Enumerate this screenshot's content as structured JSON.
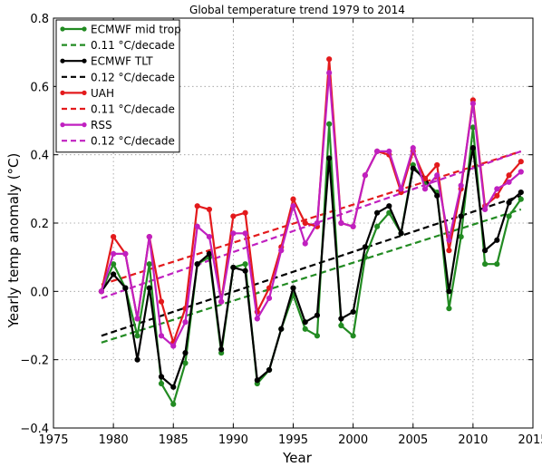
{
  "chart_data": {
    "type": "line",
    "title": "Global temperature trend 1979 to 2014",
    "xlabel": "Year",
    "ylabel": "Yearly temp anomaly (°C)",
    "xlim": [
      1975,
      2015
    ],
    "ylim": [
      -0.4,
      0.8
    ],
    "xticks": [
      1975,
      1980,
      1985,
      1990,
      1995,
      2000,
      2005,
      2010,
      2015
    ],
    "yticks": [
      -0.4,
      -0.2,
      0.0,
      0.2,
      0.4,
      0.6,
      0.8
    ],
    "xtick_labels": [
      "1975",
      "1980",
      "1985",
      "1990",
      "1995",
      "2000",
      "2005",
      "2010",
      "2015"
    ],
    "ytick_labels": [
      "−0.4",
      "−0.2",
      "0.0",
      "0.2",
      "0.4",
      "0.6",
      "0.8"
    ],
    "grid": true,
    "legend_position": "top-left",
    "x": [
      1979,
      1980,
      1981,
      1982,
      1983,
      1984,
      1985,
      1986,
      1987,
      1988,
      1989,
      1990,
      1991,
      1992,
      1993,
      1994,
      1995,
      1996,
      1997,
      1998,
      1999,
      2000,
      2001,
      2002,
      2003,
      2004,
      2005,
      2006,
      2007,
      2008,
      2009,
      2010,
      2011,
      2012,
      2013,
      2014
    ],
    "series": [
      {
        "name": "ECMWF mid trop",
        "color": "#228b22",
        "values": [
          0.0,
          0.08,
          0.01,
          -0.13,
          0.08,
          -0.27,
          -0.33,
          -0.21,
          0.08,
          0.1,
          -0.18,
          0.07,
          0.08,
          -0.27,
          -0.23,
          -0.11,
          -0.01,
          -0.11,
          -0.13,
          0.49,
          -0.1,
          -0.13,
          0.1,
          0.19,
          0.23,
          0.17,
          0.37,
          0.32,
          0.29,
          -0.05,
          0.16,
          0.48,
          0.08,
          0.08,
          0.22,
          0.27
        ]
      },
      {
        "name": "ECMWF TLT",
        "color": "#000000",
        "values": [
          0.0,
          0.05,
          0.01,
          -0.2,
          0.01,
          -0.25,
          -0.28,
          -0.18,
          0.08,
          0.11,
          -0.17,
          0.07,
          0.06,
          -0.26,
          -0.23,
          -0.11,
          0.01,
          -0.09,
          -0.07,
          0.39,
          -0.08,
          -0.06,
          0.13,
          0.23,
          0.25,
          0.17,
          0.36,
          0.33,
          0.28,
          0.0,
          0.22,
          0.42,
          0.12,
          0.15,
          0.26,
          0.29
        ]
      },
      {
        "name": "UAH",
        "color": "#e31a1c",
        "values": [
          0.0,
          0.16,
          0.11,
          -0.08,
          0.16,
          -0.03,
          -0.15,
          -0.05,
          0.25,
          0.24,
          -0.03,
          0.22,
          0.23,
          -0.06,
          0.01,
          0.13,
          0.27,
          0.2,
          0.19,
          0.68,
          0.2,
          0.19,
          0.34,
          0.41,
          0.4,
          0.29,
          0.41,
          0.33,
          0.37,
          0.12,
          0.3,
          0.56,
          0.25,
          0.28,
          0.34,
          0.38
        ]
      },
      {
        "name": "RSS",
        "color": "#c020c0",
        "values": [
          0.0,
          0.11,
          0.11,
          -0.08,
          0.16,
          -0.13,
          -0.16,
          -0.09,
          0.19,
          0.16,
          -0.03,
          0.17,
          0.17,
          -0.08,
          -0.02,
          0.12,
          0.25,
          0.14,
          0.2,
          0.64,
          0.2,
          0.19,
          0.34,
          0.41,
          0.41,
          0.3,
          0.42,
          0.3,
          0.34,
          0.15,
          0.31,
          0.55,
          0.24,
          0.3,
          0.32,
          0.35
        ]
      }
    ],
    "trends": [
      {
        "name": "0.11 °C/decade",
        "color": "#228b22",
        "x": [
          1979,
          2014
        ],
        "values": [
          -0.15,
          0.24
        ]
      },
      {
        "name": "0.12 °C/decade",
        "color": "#000000",
        "x": [
          1979,
          2014
        ],
        "values": [
          -0.13,
          0.28
        ]
      },
      {
        "name": "0.11 °C/decade",
        "color": "#e31a1c",
        "x": [
          1979,
          2014
        ],
        "values": [
          0.02,
          0.41
        ]
      },
      {
        "name": "0.12 °C/decade",
        "color": "#c020c0",
        "x": [
          1979,
          2014
        ],
        "values": [
          -0.02,
          0.41
        ]
      }
    ],
    "legend": [
      {
        "label": "ECMWF mid trop",
        "color": "#228b22",
        "style": "line-marker"
      },
      {
        "label": "0.11 °C/decade",
        "color": "#228b22",
        "style": "dashed"
      },
      {
        "label": "ECMWF TLT",
        "color": "#000000",
        "style": "line-marker"
      },
      {
        "label": "0.12 °C/decade",
        "color": "#000000",
        "style": "dashed"
      },
      {
        "label": "UAH",
        "color": "#e31a1c",
        "style": "line-marker"
      },
      {
        "label": "0.11 °C/decade",
        "color": "#e31a1c",
        "style": "dashed"
      },
      {
        "label": "RSS",
        "color": "#c020c0",
        "style": "line-marker"
      },
      {
        "label": "0.12 °C/decade",
        "color": "#c020c0",
        "style": "dashed"
      }
    ]
  }
}
